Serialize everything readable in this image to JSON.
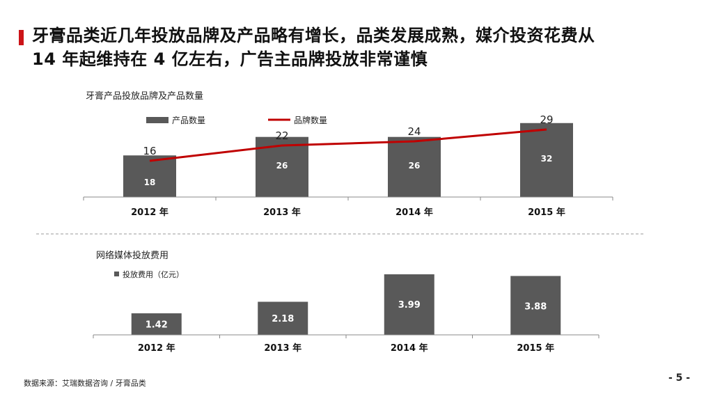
{
  "title": {
    "line1": "牙膏品类近几年投放品牌及产品略有增长，品类发展成熟，媒介投资花费从",
    "line2": "14 年起维持在 4 亿左右，广告主品牌投放非常谨慎"
  },
  "colors": {
    "accent": "#cc1418",
    "bar": "#595959",
    "line": "#c00000"
  },
  "chart_data": [
    {
      "type": "bar+line",
      "title": "牙膏产品投放品牌及产品数量",
      "categories": [
        "2012 年",
        "2013 年",
        "2014 年",
        "2015 年"
      ],
      "series": [
        {
          "name": "产品数量",
          "type": "bar",
          "values": [
            18,
            26,
            26,
            32
          ]
        },
        {
          "name": "品牌数量",
          "type": "line",
          "values": [
            16,
            22,
            24,
            29
          ]
        }
      ],
      "legend": "top",
      "xlabel": "",
      "ylabel": ""
    },
    {
      "type": "bar",
      "title": "网络媒体投放费用",
      "categories": [
        "2012 年",
        "2013 年",
        "2014 年",
        "2015 年"
      ],
      "series": [
        {
          "name": "投放费用（亿元）",
          "values": [
            1.42,
            2.18,
            3.99,
            3.88
          ]
        }
      ],
      "legend": "top-left",
      "xlabel": "",
      "ylabel": ""
    }
  ],
  "footer": {
    "source": "数据来源：艾瑞数据咨询 / 牙膏品类",
    "page": "- 5 -"
  }
}
